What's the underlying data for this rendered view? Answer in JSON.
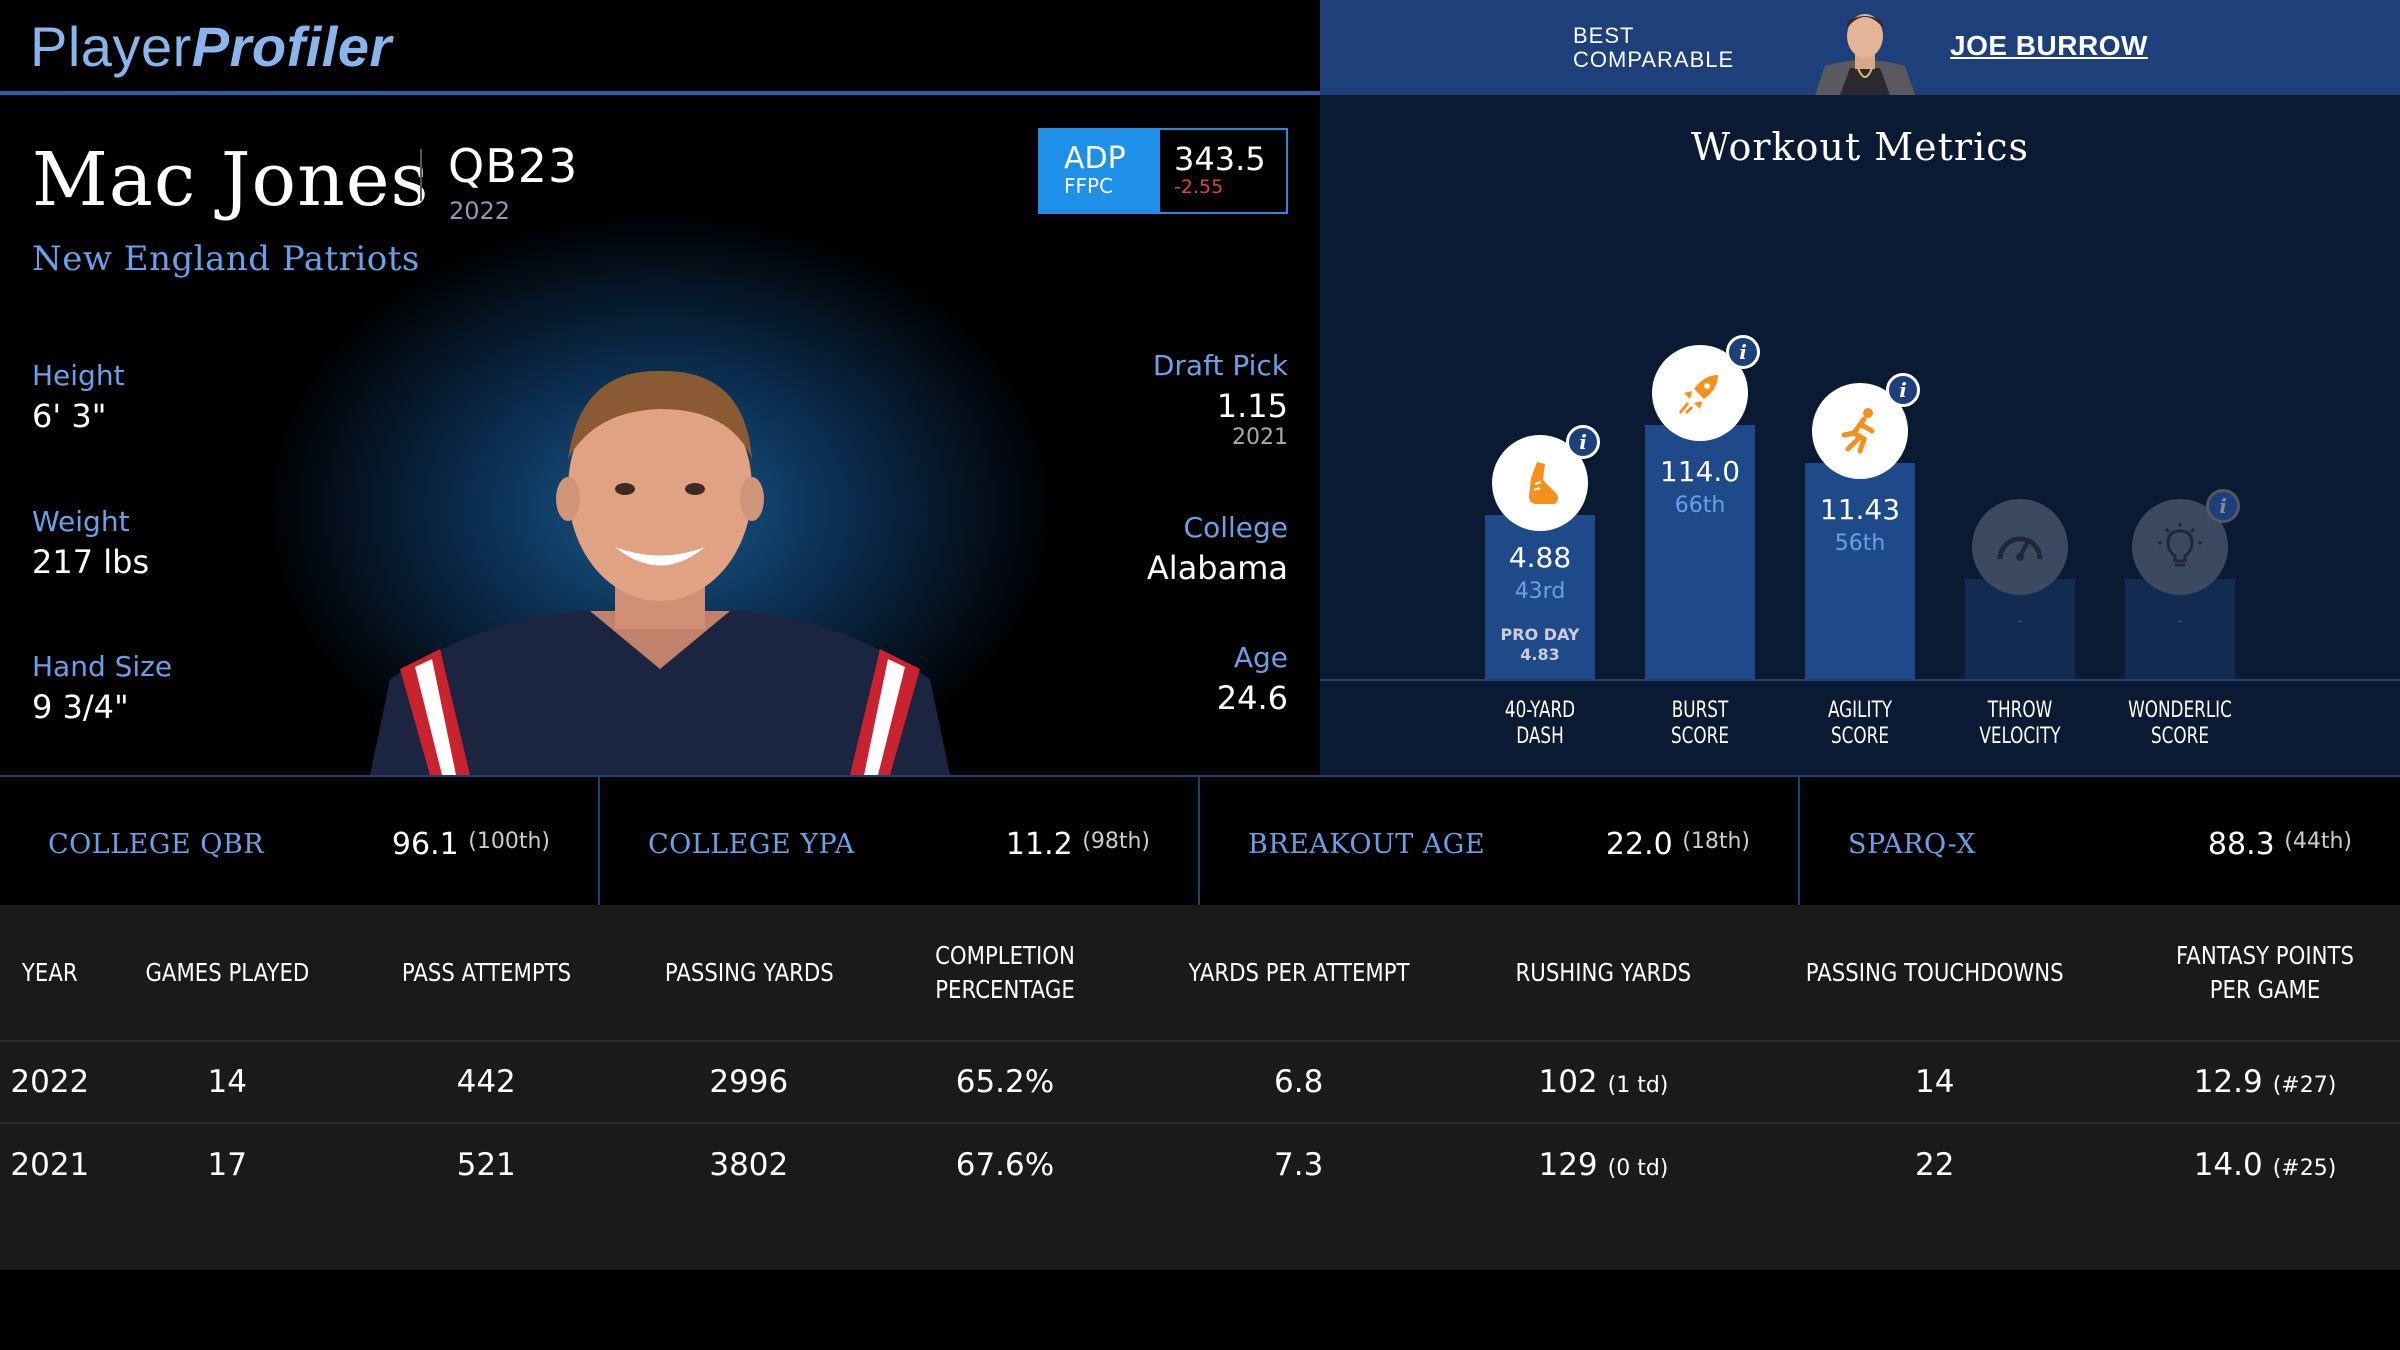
{
  "header": {
    "logo_part1": "Player",
    "logo_part2": "Profiler",
    "best_comparable_line1": "BEST",
    "best_comparable_line2": "COMPARABLE",
    "comparable_name": "JOE BURROW"
  },
  "player": {
    "name": "Mac Jones",
    "position": "QB23",
    "position_year": "2022",
    "team": "New England Patriots",
    "adp_label": "ADP",
    "adp_source": "FFPC",
    "adp_value": "343.5",
    "adp_change": "-2.55",
    "height_label": "Height",
    "height": "6' 3\"",
    "weight_label": "Weight",
    "weight": "217 lbs",
    "hand_label": "Hand Size",
    "hand": "9 3/4\"",
    "draft_label": "Draft Pick",
    "draft_pick": "1.15",
    "draft_year": "2021",
    "college_label": "College",
    "college": "Alabama",
    "age_label": "Age",
    "age": "24.6"
  },
  "workout": {
    "title": "Workout Metrics",
    "metrics": [
      {
        "label1": "40-YARD",
        "label2": "DASH",
        "value": "4.88",
        "pct": "43rd",
        "sub1": "PRO DAY",
        "sub2": "4.83",
        "icon": "shoe-icon"
      },
      {
        "label1": "BURST",
        "label2": "SCORE",
        "value": "114.0",
        "pct": "66th",
        "icon": "rocket-icon"
      },
      {
        "label1": "AGILITY",
        "label2": "SCORE",
        "value": "11.43",
        "pct": "56th",
        "icon": "runner-icon"
      },
      {
        "label1": "THROW",
        "label2": "VELOCITY",
        "value": "-",
        "icon": "gauge-icon"
      },
      {
        "label1": "WONDERLIC",
        "label2": "SCORE",
        "value": "-",
        "icon": "lightbulb-icon"
      }
    ]
  },
  "advanced": [
    {
      "label": "COLLEGE QBR",
      "value": "96.1",
      "pct": "(100th)"
    },
    {
      "label": "COLLEGE YPA",
      "value": "11.2",
      "pct": "(98th)"
    },
    {
      "label": "BREAKOUT AGE",
      "value": "22.0",
      "pct": "(18th)"
    },
    {
      "label": "SPARQ-X",
      "value": "88.3",
      "pct": "(44th)"
    }
  ],
  "stats": {
    "headers": [
      "YEAR",
      "GAMES PLAYED",
      "PASS ATTEMPTS",
      "PASSING YARDS",
      "COMPLETION PERCENTAGE",
      "YARDS PER ATTEMPT",
      "RUSHING YARDS",
      "PASSING TOUCHDOWNS",
      "FANTASY POINTS PER GAME"
    ],
    "rows": [
      {
        "year": "2022",
        "games": "14",
        "attempts": "442",
        "pass_yds": "2996",
        "comp_pct": "65.2%",
        "ypa": "6.8",
        "rush_yds": "102",
        "rush_td": "(1 td)",
        "pass_td": "14",
        "fppg": "12.9",
        "fppg_rank": "(#27)"
      },
      {
        "year": "2021",
        "games": "17",
        "attempts": "521",
        "pass_yds": "3802",
        "comp_pct": "67.6%",
        "ypa": "7.3",
        "rush_yds": "129",
        "rush_td": "(0 td)",
        "pass_td": "22",
        "fppg": "14.0",
        "fppg_rank": "(#25)"
      }
    ]
  },
  "colors": {
    "accent_blue": "#6aa0e8",
    "header_blue": "#1d3f7a",
    "adp_blue": "#1e90e8",
    "icon_orange": "#f5901e",
    "negative_red": "#e04040"
  }
}
